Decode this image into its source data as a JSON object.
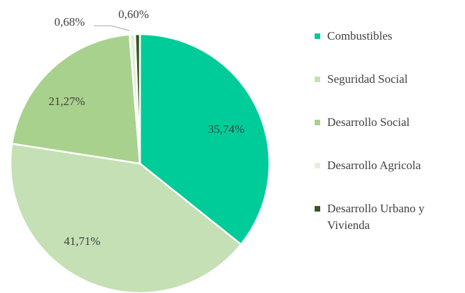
{
  "chart_data": {
    "type": "pie",
    "categories": [
      "Combustibles",
      "Seguridad Social",
      "Desarrollo Social",
      "Desarrollo Agricola",
      "Desarrollo Urbano y Vivienda"
    ],
    "values": [
      35.74,
      41.71,
      21.27,
      0.68,
      0.6
    ],
    "value_labels": [
      "35,74%",
      "41,71%",
      "21,27%",
      "0,68%",
      "0,60%"
    ],
    "colors": [
      "#00cc99",
      "#c5e0b4",
      "#a9d18e",
      "#e2f0d9",
      "#375623"
    ],
    "legend": "right"
  }
}
